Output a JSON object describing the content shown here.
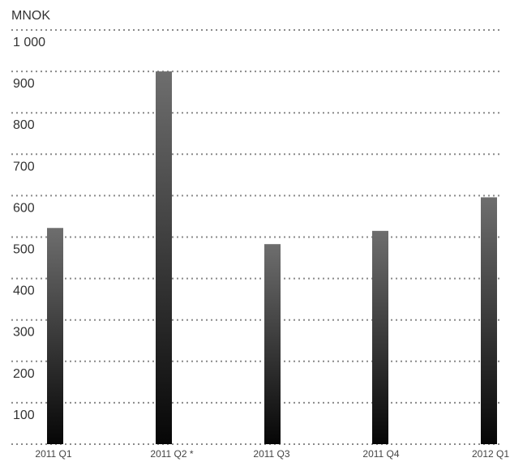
{
  "chart_data": {
    "type": "bar",
    "unit_label": "MNOK",
    "categories": [
      "2011 Q1",
      "2011 Q2 *",
      "2011 Q3",
      "2011 Q4",
      "2012 Q1"
    ],
    "values": [
      522,
      900,
      483,
      515,
      596
    ],
    "ylim": [
      0,
      1000
    ],
    "yticks": [
      100,
      200,
      300,
      400,
      500,
      600,
      700,
      800,
      900,
      1000
    ],
    "ytick_labels": [
      "100",
      "200",
      "300",
      "400",
      "500",
      "600",
      "700",
      "800",
      "900",
      "1 000"
    ],
    "grid": true,
    "bar_gradient": [
      "#6e6e6e",
      "#060606"
    ],
    "grid_color": "#8a8a8a"
  }
}
